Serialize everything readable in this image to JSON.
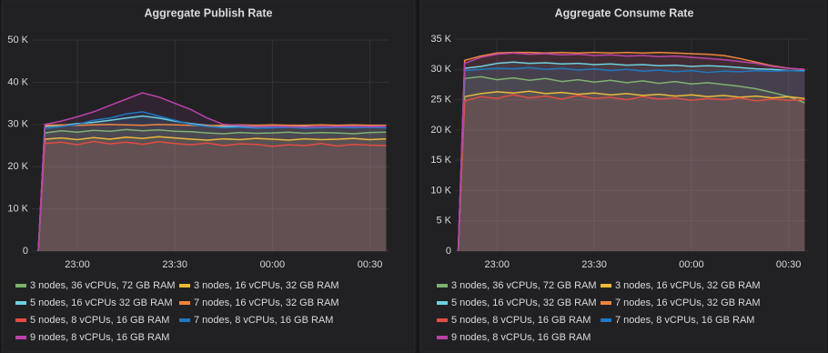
{
  "chart_data": [
    {
      "type": "line",
      "title": "Aggregate Publish Rate",
      "x": [
        "22:48",
        "22:50",
        "22:55",
        "23:00",
        "23:05",
        "23:10",
        "23:15",
        "23:20",
        "23:25",
        "23:30",
        "23:35",
        "23:40",
        "23:45",
        "23:50",
        "23:55",
        "00:00",
        "00:05",
        "00:10",
        "00:15",
        "00:20",
        "00:25",
        "00:30",
        "00:35"
      ],
      "xlim": [
        "22:46",
        "00:36"
      ],
      "xticks": [
        "23:00",
        "23:30",
        "00:00",
        "00:30"
      ],
      "ylim": [
        0,
        50000
      ],
      "yticks": [
        0,
        {
          "value": 10000,
          "label": "10 K"
        },
        {
          "value": 20000,
          "label": "20 K"
        },
        {
          "value": 30000,
          "label": "30 K"
        },
        {
          "value": 40000,
          "label": "40 K"
        },
        {
          "value": 50000,
          "label": "50 K"
        }
      ],
      "grid": true,
      "series": [
        {
          "name": "3 nodes, 36 vCPUs, 72 GB RAM",
          "color": "#7eb26d",
          "values": [
            0,
            28000,
            28500,
            28200,
            28600,
            28400,
            28800,
            28500,
            28700,
            28400,
            28300,
            28000,
            27800,
            28100,
            27900,
            28000,
            28200,
            27900,
            28100,
            28000,
            27800,
            28100,
            28200
          ]
        },
        {
          "name": "3 nodes, 16 vCPUs, 32 GB RAM",
          "color": "#eab839",
          "values": [
            0,
            26500,
            26800,
            26400,
            26900,
            26500,
            27000,
            26700,
            27100,
            26800,
            26500,
            26300,
            26600,
            26400,
            26700,
            26500,
            26300,
            26600,
            26400,
            26500,
            26700,
            26400,
            26600
          ]
        },
        {
          "name": "5 nodes, 16 vCPUs 32 GB RAM",
          "color": "#6ed0e0",
          "values": [
            0,
            29500,
            29800,
            30200,
            30500,
            31000,
            31500,
            32000,
            31500,
            30800,
            30200,
            29800,
            29500,
            29600,
            29400,
            29500,
            29600,
            29500,
            29400,
            29600,
            29500,
            29500,
            29600
          ]
        },
        {
          "name": "7 nodes, 16 vCPUs, 32 GB RAM",
          "color": "#ef843c",
          "values": [
            0,
            29800,
            29900,
            29800,
            29900,
            30000,
            29900,
            29800,
            30000,
            29900,
            29800,
            29700,
            29800,
            29900,
            29800,
            29900,
            29800,
            29800,
            29900,
            29800,
            29900,
            29800,
            29800
          ]
        },
        {
          "name": "5 nodes, 8 vCPUs, 16 GB RAM",
          "color": "#e24d42",
          "values": [
            0,
            25500,
            25800,
            25200,
            26000,
            25400,
            25800,
            25300,
            25900,
            25500,
            25200,
            25600,
            25000,
            25400,
            25300,
            24800,
            25200,
            25000,
            25500,
            24900,
            25300,
            25100,
            25000
          ]
        },
        {
          "name": "7 nodes, 8 vCPUs, 16 GB RAM",
          "color": "#1f78c1",
          "values": [
            0,
            29000,
            29500,
            30000,
            31000,
            31500,
            32500,
            33000,
            32000,
            31000,
            30000,
            29500,
            29200,
            29300,
            29100,
            29200,
            29300,
            29100,
            29200,
            29300,
            29200,
            29300,
            29200
          ]
        },
        {
          "name": "9 nodes, 8 vCPUs, 16 GB RAM",
          "color": "#ba43a9",
          "values": [
            0,
            30000,
            30800,
            31800,
            33000,
            34500,
            36000,
            37500,
            36500,
            35000,
            33500,
            31500,
            30000,
            29800,
            29500,
            29600,
            29500,
            29400,
            29500,
            29500,
            29600,
            29500,
            29600
          ]
        }
      ]
    },
    {
      "type": "line",
      "title": "Aggregate Consume Rate",
      "x": [
        "22:48",
        "22:50",
        "22:55",
        "23:00",
        "23:05",
        "23:10",
        "23:15",
        "23:20",
        "23:25",
        "23:30",
        "23:35",
        "23:40",
        "23:45",
        "23:50",
        "23:55",
        "00:00",
        "00:05",
        "00:10",
        "00:15",
        "00:20",
        "00:25",
        "00:30",
        "00:35"
      ],
      "xlim": [
        "22:47",
        "00:36"
      ],
      "xticks": [
        "23:00",
        "23:30",
        "00:00",
        "00:30"
      ],
      "ylim": [
        0,
        35000
      ],
      "yticks": [
        0,
        {
          "value": 5000,
          "label": "5 K"
        },
        {
          "value": 10000,
          "label": "10 K"
        },
        {
          "value": 15000,
          "label": "15 K"
        },
        {
          "value": 20000,
          "label": "20 K"
        },
        {
          "value": 25000,
          "label": "25 K"
        },
        {
          "value": 30000,
          "label": "30 K"
        },
        {
          "value": 35000,
          "label": "35 K"
        }
      ],
      "grid": true,
      "series": [
        {
          "name": "3 nodes, 36 vCPUs, 72 GB RAM",
          "color": "#7eb26d",
          "values": [
            0,
            28500,
            28800,
            28300,
            28600,
            28200,
            28500,
            28000,
            28300,
            27900,
            28200,
            27800,
            28100,
            27700,
            28000,
            27600,
            27800,
            27500,
            27200,
            26800,
            26200,
            25500,
            24500
          ]
        },
        {
          "name": "3 nodes, 16 vCPUs, 32 GB RAM",
          "color": "#eab839",
          "values": [
            0,
            25500,
            26000,
            26300,
            26100,
            26400,
            26000,
            26200,
            25900,
            26100,
            25800,
            26000,
            25700,
            25900,
            25600,
            25800,
            25500,
            25700,
            25400,
            25600,
            25300,
            25500,
            25200
          ]
        },
        {
          "name": "5 nodes, 16 vCPUs, 32 GB RAM",
          "color": "#6ed0e0",
          "values": [
            0,
            30200,
            30500,
            31000,
            31200,
            31000,
            31100,
            30900,
            31000,
            30800,
            30900,
            30700,
            30800,
            30600,
            30700,
            30500,
            30600,
            30500,
            30300,
            30100,
            30000,
            29800,
            29800
          ]
        },
        {
          "name": "7 nodes, 16 vCPUs, 32 GB RAM",
          "color": "#ef843c",
          "values": [
            0,
            31500,
            32200,
            32700,
            32800,
            32800,
            32700,
            32800,
            32700,
            32800,
            32700,
            32800,
            32700,
            32800,
            32700,
            32600,
            32500,
            32300,
            31800,
            31200,
            30600,
            30200,
            30000
          ]
        },
        {
          "name": "5 nodes, 8 vCPUs, 16 GB RAM",
          "color": "#e24d42",
          "values": [
            0,
            24800,
            25500,
            25200,
            25800,
            25300,
            25600,
            25100,
            25700,
            25200,
            25400,
            25000,
            25500,
            25100,
            25300,
            24900,
            25200,
            25000,
            25300,
            24800,
            25100,
            24900,
            25000
          ]
        },
        {
          "name": "7 nodes, 8 vCPUs, 16 GB RAM",
          "color": "#1f78c1",
          "values": [
            0,
            29800,
            30000,
            30200,
            30100,
            30300,
            30000,
            30200,
            29900,
            30100,
            29800,
            30000,
            29700,
            29900,
            29600,
            29800,
            29500,
            29700,
            29600,
            29800,
            29700,
            29800,
            29700
          ]
        },
        {
          "name": "9 nodes, 8 vCPUs, 16 GB RAM",
          "color": "#ba43a9",
          "values": [
            0,
            31000,
            32000,
            32500,
            32700,
            32500,
            32600,
            32400,
            32500,
            32300,
            32400,
            32200,
            32300,
            32100,
            32200,
            32000,
            31800,
            31600,
            31300,
            31000,
            30500,
            30200,
            30000
          ]
        }
      ]
    }
  ]
}
